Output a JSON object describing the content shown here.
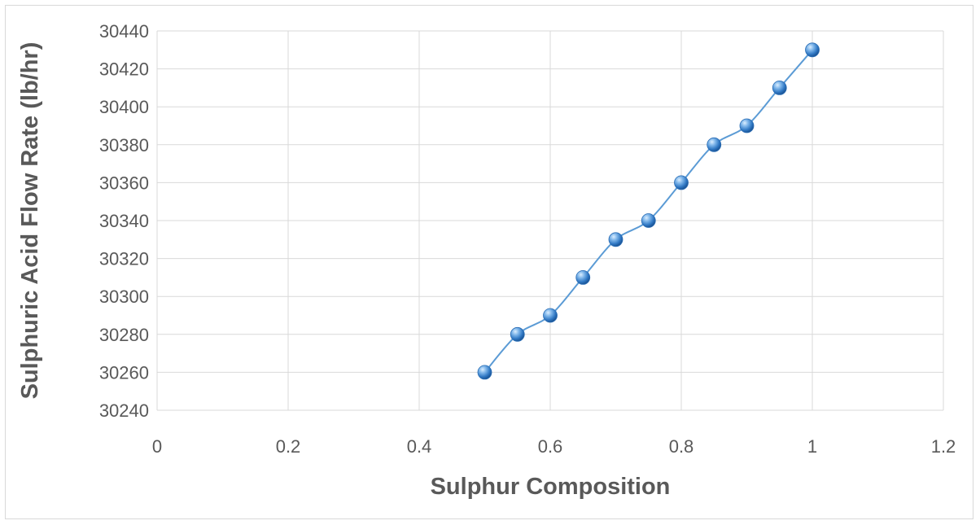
{
  "chart_data": {
    "type": "scatter",
    "title": "",
    "xlabel": "Sulphur Composition",
    "ylabel": "Sulphuric Acid Flow Rate (lb/hr)",
    "xlim": [
      0,
      1.2
    ],
    "ylim": [
      30240,
      30440
    ],
    "xticks": [
      0,
      0.2,
      0.4,
      0.6,
      0.8,
      1,
      1.2
    ],
    "yticks": [
      30240,
      30260,
      30280,
      30300,
      30320,
      30340,
      30360,
      30380,
      30400,
      30420,
      30440
    ],
    "grid": true,
    "legend": "none",
    "series": [
      {
        "color": "#5b9bd5",
        "x": [
          0.5,
          0.55,
          0.6,
          0.65,
          0.7,
          0.75,
          0.8,
          0.85,
          0.9,
          0.95,
          1.0
        ],
        "y": [
          30260,
          30280,
          30290,
          30310,
          30330,
          30340,
          30360,
          30380,
          30390,
          30410,
          30430
        ]
      }
    ]
  }
}
